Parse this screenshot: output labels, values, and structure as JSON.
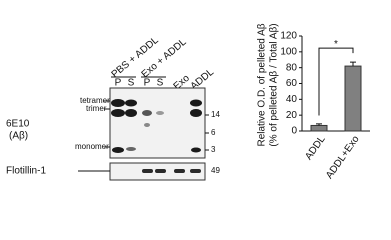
{
  "blot": {
    "groups": [
      "PBS + ADDL",
      "Exo + ADDL"
    ],
    "lanes": [
      "P",
      "S",
      "P",
      "S",
      "Exo",
      "ADDL"
    ],
    "antibody": [
      "6E10",
      "(Aβ)"
    ],
    "bands": [
      "tetramer",
      "trimer",
      "monomer"
    ],
    "markers": [
      14,
      6,
      3
    ],
    "loading": "Flotillin-1",
    "loading_marker": 49
  },
  "chart_data": {
    "type": "bar",
    "y_label": [
      "Relative O.D. of pelleted Aβ",
      "(% of pelleted Aβ / Total Aβ)"
    ],
    "categories": [
      "ADDL",
      "ADDL+Exo"
    ],
    "values": [
      7,
      82
    ],
    "errors": [
      2,
      5
    ],
    "color": "#808080",
    "ylim": [
      0,
      120
    ],
    "yticks": [
      0,
      20,
      40,
      60,
      80,
      100,
      120
    ],
    "annotation": "*"
  }
}
